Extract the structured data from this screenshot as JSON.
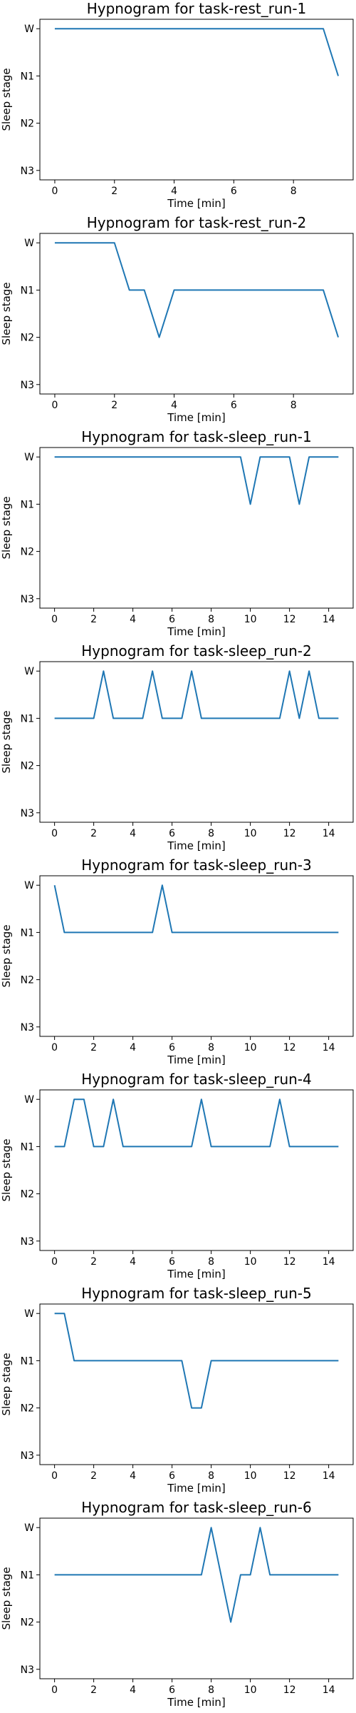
{
  "figure": {
    "line_color": "#1f77b4"
  },
  "chart_data": [
    {
      "type": "line",
      "title": "Hypnogram for task-rest_run-1",
      "xlabel": "Time [min]",
      "ylabel": "Sleep stage",
      "xlim": [
        -0.5,
        10.0
      ],
      "xticks": [
        0,
        2,
        4,
        6,
        8
      ],
      "xtick_labels": [
        "0",
        "2",
        "4",
        "6",
        "8"
      ],
      "y_categories": [
        "W",
        "N1",
        "N2",
        "N3"
      ],
      "grid": false,
      "series": [
        {
          "x": [
            0,
            9.0,
            9.5
          ],
          "y": [
            "W",
            "W",
            "N1"
          ]
        }
      ]
    },
    {
      "type": "line",
      "title": "Hypnogram for task-rest_run-2",
      "xlabel": "Time [min]",
      "ylabel": "Sleep stage",
      "xlim": [
        -0.5,
        10.0
      ],
      "xticks": [
        0,
        2,
        4,
        6,
        8
      ],
      "xtick_labels": [
        "0",
        "2",
        "4",
        "6",
        "8"
      ],
      "y_categories": [
        "W",
        "N1",
        "N2",
        "N3"
      ],
      "grid": false,
      "series": [
        {
          "x": [
            0,
            2.0,
            2.5,
            3.0,
            3.5,
            4.0,
            9.0,
            9.5
          ],
          "y": [
            "W",
            "W",
            "N1",
            "N1",
            "N2",
            "N1",
            "N1",
            "N2"
          ]
        }
      ]
    },
    {
      "type": "line",
      "title": "Hypnogram for task-sleep_run-1",
      "xlabel": "Time [min]",
      "ylabel": "Sleep stage",
      "xlim": [
        -0.75,
        15.25
      ],
      "xticks": [
        0,
        2,
        4,
        6,
        8,
        10,
        12,
        14
      ],
      "xtick_labels": [
        "0",
        "2",
        "4",
        "6",
        "8",
        "10",
        "12",
        "14"
      ],
      "y_categories": [
        "W",
        "N1",
        "N2",
        "N3"
      ],
      "grid": false,
      "series": [
        {
          "x": [
            0,
            9.5,
            10.0,
            10.5,
            12.0,
            12.5,
            13.0,
            14.5
          ],
          "y": [
            "W",
            "W",
            "N1",
            "W",
            "W",
            "N1",
            "W",
            "W"
          ]
        }
      ]
    },
    {
      "type": "line",
      "title": "Hypnogram for task-sleep_run-2",
      "xlabel": "Time [min]",
      "ylabel": "Sleep stage",
      "xlim": [
        -0.75,
        15.25
      ],
      "xticks": [
        0,
        2,
        4,
        6,
        8,
        10,
        12,
        14
      ],
      "xtick_labels": [
        "0",
        "2",
        "4",
        "6",
        "8",
        "10",
        "12",
        "14"
      ],
      "y_categories": [
        "W",
        "N1",
        "N2",
        "N3"
      ],
      "grid": false,
      "series": [
        {
          "x": [
            0,
            2.0,
            2.5,
            3.0,
            4.5,
            5.0,
            5.5,
            6.5,
            7.0,
            7.5,
            11.5,
            12.0,
            12.5,
            13.0,
            13.5,
            14.5
          ],
          "y": [
            "N1",
            "N1",
            "W",
            "N1",
            "N1",
            "W",
            "N1",
            "N1",
            "W",
            "N1",
            "N1",
            "W",
            "N1",
            "W",
            "N1",
            "N1"
          ]
        }
      ]
    },
    {
      "type": "line",
      "title": "Hypnogram for task-sleep_run-3",
      "xlabel": "Time [min]",
      "ylabel": "Sleep stage",
      "xlim": [
        -0.75,
        15.25
      ],
      "xticks": [
        0,
        2,
        4,
        6,
        8,
        10,
        12,
        14
      ],
      "xtick_labels": [
        "0",
        "2",
        "4",
        "6",
        "8",
        "10",
        "12",
        "14"
      ],
      "y_categories": [
        "W",
        "N1",
        "N2",
        "N3"
      ],
      "grid": false,
      "series": [
        {
          "x": [
            0,
            0.5,
            5.0,
            5.5,
            6.0,
            14.5
          ],
          "y": [
            "W",
            "N1",
            "N1",
            "W",
            "N1",
            "N1"
          ]
        }
      ]
    },
    {
      "type": "line",
      "title": "Hypnogram for task-sleep_run-4",
      "xlabel": "Time [min]",
      "ylabel": "Sleep stage",
      "xlim": [
        -0.75,
        15.25
      ],
      "xticks": [
        0,
        2,
        4,
        6,
        8,
        10,
        12,
        14
      ],
      "xtick_labels": [
        "0",
        "2",
        "4",
        "6",
        "8",
        "10",
        "12",
        "14"
      ],
      "y_categories": [
        "W",
        "N1",
        "N2",
        "N3"
      ],
      "grid": false,
      "series": [
        {
          "x": [
            0,
            0.5,
            1.0,
            1.5,
            2.0,
            2.5,
            3.0,
            3.5,
            7.0,
            7.5,
            8.0,
            11.0,
            11.5,
            12.0,
            14.5
          ],
          "y": [
            "N1",
            "N1",
            "W",
            "W",
            "N1",
            "N1",
            "W",
            "N1",
            "N1",
            "W",
            "N1",
            "N1",
            "W",
            "N1",
            "N1"
          ]
        }
      ]
    },
    {
      "type": "line",
      "title": "Hypnogram for task-sleep_run-5",
      "xlabel": "Time [min]",
      "ylabel": "Sleep stage",
      "xlim": [
        -0.75,
        15.25
      ],
      "xticks": [
        0,
        2,
        4,
        6,
        8,
        10,
        12,
        14
      ],
      "xtick_labels": [
        "0",
        "2",
        "4",
        "6",
        "8",
        "10",
        "12",
        "14"
      ],
      "y_categories": [
        "W",
        "N1",
        "N2",
        "N3"
      ],
      "grid": false,
      "series": [
        {
          "x": [
            0,
            0.5,
            1.0,
            6.5,
            7.0,
            7.5,
            8.0,
            14.5
          ],
          "y": [
            "W",
            "W",
            "N1",
            "N1",
            "N2",
            "N2",
            "N1",
            "N1"
          ]
        }
      ]
    },
    {
      "type": "line",
      "title": "Hypnogram for task-sleep_run-6",
      "xlabel": "Time [min]",
      "ylabel": "Sleep stage",
      "xlim": [
        -0.75,
        15.25
      ],
      "xticks": [
        0,
        2,
        4,
        6,
        8,
        10,
        12,
        14
      ],
      "xtick_labels": [
        "0",
        "2",
        "4",
        "6",
        "8",
        "10",
        "12",
        "14"
      ],
      "y_categories": [
        "W",
        "N1",
        "N2",
        "N3"
      ],
      "grid": false,
      "series": [
        {
          "x": [
            0,
            7.5,
            8.0,
            8.5,
            9.0,
            9.5,
            10.0,
            10.5,
            11.0,
            14.5
          ],
          "y": [
            "N1",
            "N1",
            "W",
            "N1",
            "N2",
            "N1",
            "N1",
            "W",
            "N1",
            "N1"
          ]
        }
      ]
    }
  ]
}
